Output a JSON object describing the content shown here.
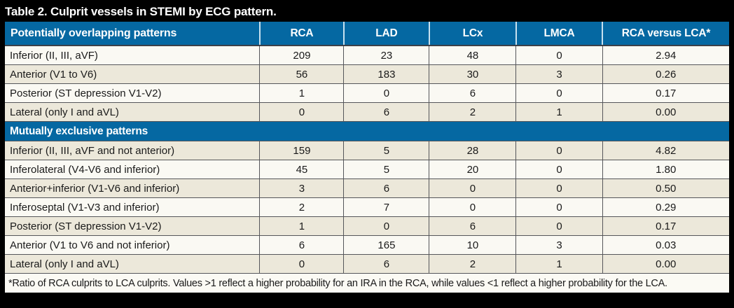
{
  "title": "Table 2. Culprit vessels in STEMI by ECG pattern.",
  "columns": [
    "Potentially overlapping patterns",
    "RCA",
    "LAD",
    "LCx",
    "LMCA",
    "RCA versus LCA*"
  ],
  "sections": [
    {
      "label": "",
      "rows": [
        {
          "label": "Inferior (II, III, aVF)",
          "values": [
            "209",
            "23",
            "48",
            "0",
            "2.94"
          ]
        },
        {
          "label": "Anterior (V1 to V6)",
          "values": [
            "56",
            "183",
            "30",
            "3",
            "0.26"
          ]
        },
        {
          "label": "Posterior (ST depression V1-V2)",
          "values": [
            "1",
            "0",
            "6",
            "0",
            "0.17"
          ]
        },
        {
          "label": "Lateral (only I and aVL)",
          "values": [
            "0",
            "6",
            "2",
            "1",
            "0.00"
          ]
        }
      ]
    },
    {
      "label": "Mutually exclusive patterns",
      "rows": [
        {
          "label": "Inferior (II, III, aVF and not anterior)",
          "values": [
            "159",
            "5",
            "28",
            "0",
            "4.82"
          ]
        },
        {
          "label": "Inferolateral (V4-V6 and inferior)",
          "values": [
            "45",
            "5",
            "20",
            "0",
            "1.80"
          ]
        },
        {
          "label": "Anterior+inferior (V1-V6 and inferior)",
          "values": [
            "3",
            "6",
            "0",
            "0",
            "0.50"
          ]
        },
        {
          "label": "Inferoseptal (V1-V3 and inferior)",
          "values": [
            "2",
            "7",
            "0",
            "0",
            "0.29"
          ]
        },
        {
          "label": "Posterior (ST depression V1-V2)",
          "values": [
            "1",
            "0",
            "6",
            "0",
            "0.17"
          ]
        },
        {
          "label": "Anterior (V1 to V6 and not inferior)",
          "values": [
            "6",
            "165",
            "10",
            "3",
            "0.03"
          ]
        },
        {
          "label": "Lateral (only I and aVL)",
          "values": [
            "0",
            "6",
            "2",
            "1",
            "0.00"
          ]
        }
      ]
    }
  ],
  "footnote": "*Ratio of RCA culprits to LCA culprits. Values >1 reflect a higher probability for an IRA in the RCA, while values <1 reflect a higher probability for the LCA.",
  "colors": {
    "header_blue": "#0568a2",
    "row_white": "#faf9f3",
    "row_beige": "#ece8da",
    "frame_black": "#000000",
    "grid_line": "#55565a",
    "header_divider": "#c8e1ef",
    "text_dark": "#1a1a1a",
    "footnote_bg": "#fbfaf4",
    "title_text": "#ffffff"
  }
}
